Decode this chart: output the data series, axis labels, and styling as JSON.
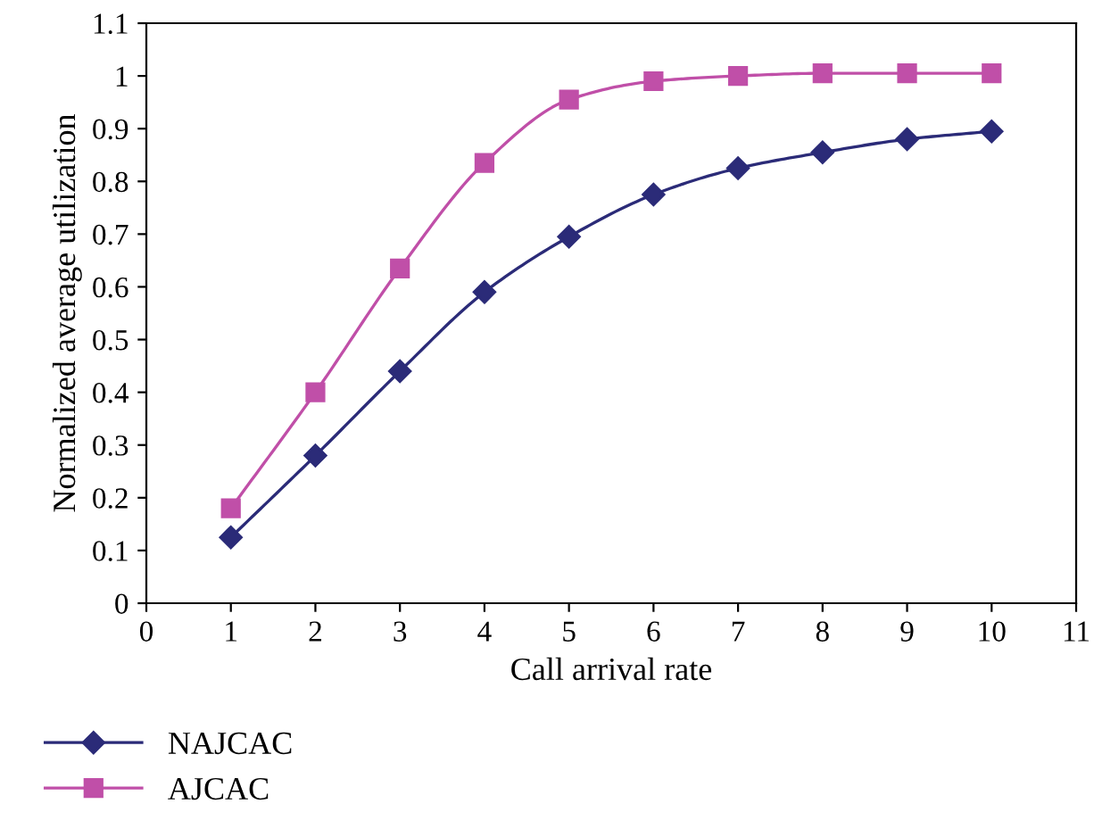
{
  "chart_data": {
    "type": "line",
    "xlabel": "Call arrival rate",
    "ylabel": "Normalized average utilization",
    "x": [
      1,
      2,
      3,
      4,
      5,
      6,
      7,
      8,
      9,
      10
    ],
    "series": [
      {
        "name": "NAJCAC",
        "color": "#2b2b78",
        "marker": "diamond",
        "values": [
          0.125,
          0.28,
          0.44,
          0.59,
          0.695,
          0.775,
          0.825,
          0.855,
          0.88,
          0.895
        ]
      },
      {
        "name": "AJCAC",
        "color": "#c04fa8",
        "marker": "square",
        "values": [
          0.18,
          0.4,
          0.635,
          0.835,
          0.955,
          0.99,
          1.0,
          1.005,
          1.005,
          1.005
        ]
      }
    ],
    "xlim": [
      0,
      11
    ],
    "xticks": [
      0,
      1,
      2,
      3,
      4,
      5,
      6,
      7,
      8,
      9,
      10,
      11
    ],
    "ylim": [
      0,
      1.1
    ],
    "yticks": [
      0,
      0.1,
      0.2,
      0.3,
      0.4,
      0.5,
      0.6,
      0.7,
      0.8,
      0.9,
      1,
      1.1
    ],
    "grid": false,
    "legend": "bottom left",
    "line_style": "solid"
  }
}
